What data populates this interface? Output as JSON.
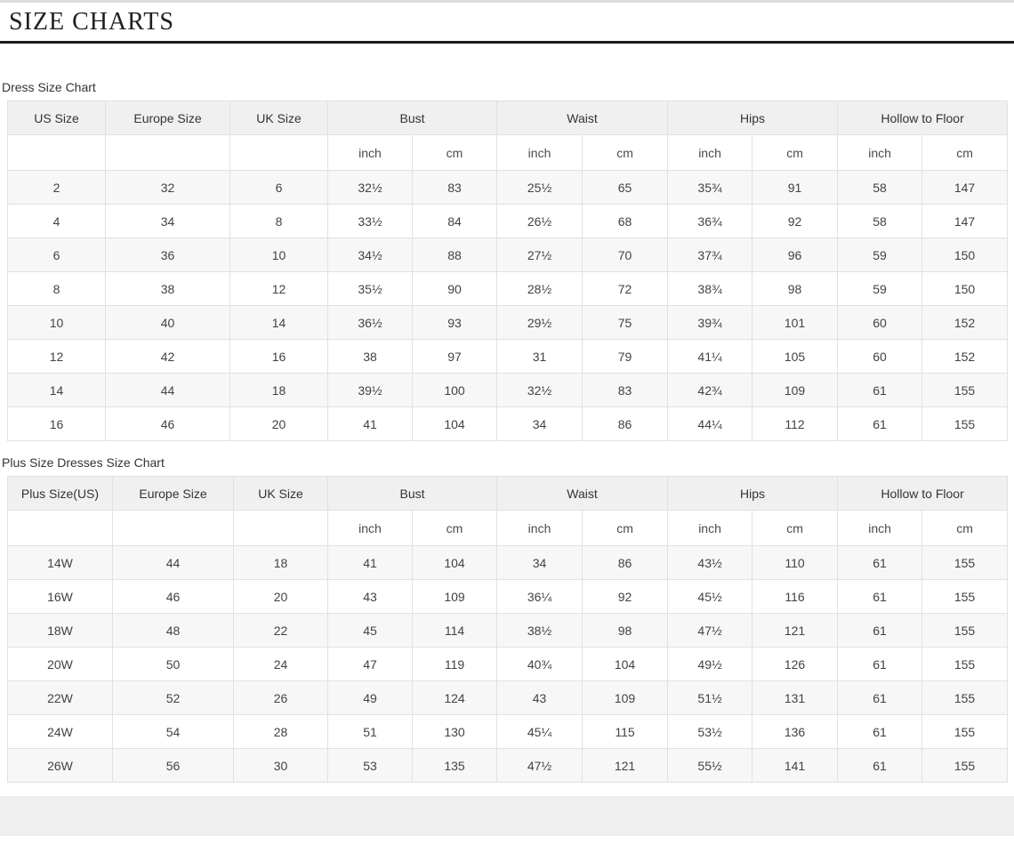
{
  "title": "SIZE CHARTS",
  "colors": {
    "title_rule": "#1c1c1c",
    "header_bg": "#f0f0f0",
    "stripe_bg": "#f7f7f7",
    "border": "#e1e1e1",
    "footer_band": "#efefef"
  },
  "dress_chart": {
    "label": "Dress Size Chart",
    "single_columns": [
      "US Size",
      "Europe Size",
      "UK Size"
    ],
    "group_columns": [
      "Bust",
      "Waist",
      "Hips",
      "Hollow to Floor"
    ],
    "units": [
      "inch",
      "cm"
    ],
    "rows": [
      [
        "2",
        "32",
        "6",
        "32½",
        "83",
        "25½",
        "65",
        "35¾",
        "91",
        "58",
        "147"
      ],
      [
        "4",
        "34",
        "8",
        "33½",
        "84",
        "26½",
        "68",
        "36¾",
        "92",
        "58",
        "147"
      ],
      [
        "6",
        "36",
        "10",
        "34½",
        "88",
        "27½",
        "70",
        "37¾",
        "96",
        "59",
        "150"
      ],
      [
        "8",
        "38",
        "12",
        "35½",
        "90",
        "28½",
        "72",
        "38¾",
        "98",
        "59",
        "150"
      ],
      [
        "10",
        "40",
        "14",
        "36½",
        "93",
        "29½",
        "75",
        "39¾",
        "101",
        "60",
        "152"
      ],
      [
        "12",
        "42",
        "16",
        "38",
        "97",
        "31",
        "79",
        "41¼",
        "105",
        "60",
        "152"
      ],
      [
        "14",
        "44",
        "18",
        "39½",
        "100",
        "32½",
        "83",
        "42¾",
        "109",
        "61",
        "155"
      ],
      [
        "16",
        "46",
        "20",
        "41",
        "104",
        "34",
        "86",
        "44¼",
        "112",
        "61",
        "155"
      ]
    ]
  },
  "plus_chart": {
    "label": "Plus Size Dresses Size Chart",
    "single_columns": [
      "Plus Size(US)",
      "Europe Size",
      "UK Size"
    ],
    "group_columns": [
      "Bust",
      "Waist",
      "Hips",
      "Hollow to Floor"
    ],
    "units": [
      "inch",
      "cm"
    ],
    "rows": [
      [
        "14W",
        "44",
        "18",
        "41",
        "104",
        "34",
        "86",
        "43½",
        "110",
        "61",
        "155"
      ],
      [
        "16W",
        "46",
        "20",
        "43",
        "109",
        "36¼",
        "92",
        "45½",
        "116",
        "61",
        "155"
      ],
      [
        "18W",
        "48",
        "22",
        "45",
        "114",
        "38½",
        "98",
        "47½",
        "121",
        "61",
        "155"
      ],
      [
        "20W",
        "50",
        "24",
        "47",
        "119",
        "40¾",
        "104",
        "49½",
        "126",
        "61",
        "155"
      ],
      [
        "22W",
        "52",
        "26",
        "49",
        "124",
        "43",
        "109",
        "51½",
        "131",
        "61",
        "155"
      ],
      [
        "24W",
        "54",
        "28",
        "51",
        "130",
        "45¼",
        "115",
        "53½",
        "136",
        "61",
        "155"
      ],
      [
        "26W",
        "56",
        "30",
        "53",
        "135",
        "47½",
        "121",
        "55½",
        "141",
        "61",
        "155"
      ]
    ]
  }
}
